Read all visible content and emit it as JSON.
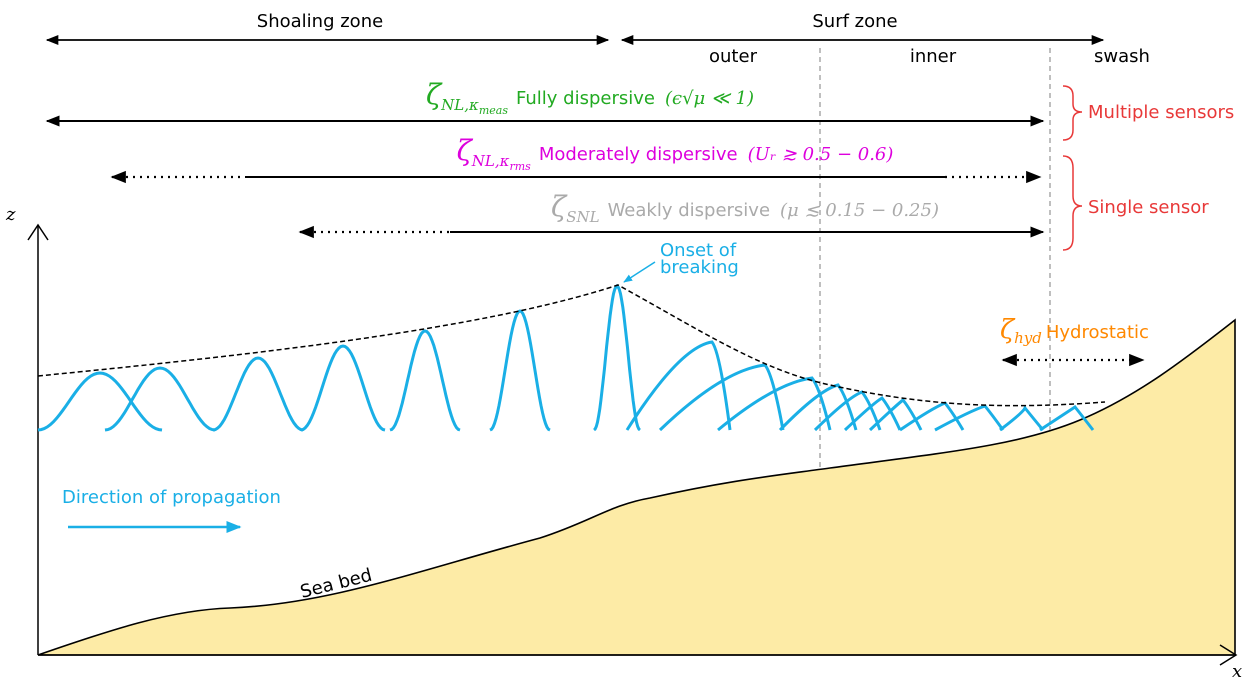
{
  "zones": {
    "shoaling": "Shoaling zone",
    "surf": "Surf zone",
    "outer": "outer",
    "inner": "inner",
    "swash": "swash"
  },
  "models": [
    {
      "symbol": "ζ",
      "subscript": "NL,κ",
      "subsubscript": "meas",
      "name": "Fully dispersive",
      "condition": "(ϵ√μ ≪ 1)"
    },
    {
      "symbol": "ζ",
      "subscript": "NL,κ",
      "subsubscript": "rms",
      "name": "Moderately dispersive",
      "condition": "(Uᵣ ≳ 0.5 − 0.6)"
    },
    {
      "symbol": "ζ",
      "subscript": "SNL",
      "name": "Weakly dispersive",
      "condition": "(μ ≲ 0.15 − 0.25)"
    }
  ],
  "sensor_groups": [
    "Multiple sensors",
    "Single sensor"
  ],
  "hydrostatic": {
    "symbol": "ζ",
    "subscript": "hyd",
    "name": "Hydrostatic"
  },
  "annotations": {
    "breaking": [
      "Onset of",
      "breaking"
    ],
    "direction": "Direction of propagation",
    "seabed": "Sea bed"
  },
  "axes": {
    "z": "z",
    "x": "x"
  }
}
